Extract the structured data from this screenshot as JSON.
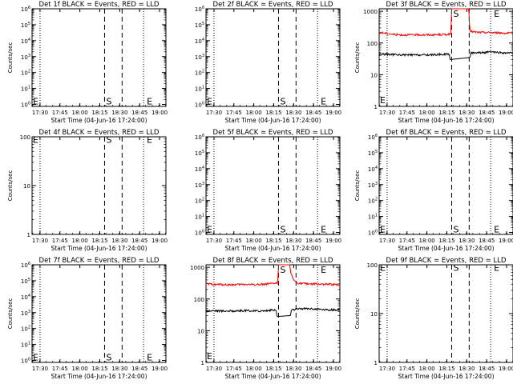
{
  "chart_data": [
    {
      "type": "line",
      "title": "Det 1f BLACK = Events, RED = LLD",
      "xlabel": "Start Time (04-Jun-16 17:24:00)",
      "ylabel": "Counts/sec",
      "xlim": [
        17.4,
        19.08
      ],
      "x_tick_labels": [
        "17:30",
        "17:45",
        "18:00",
        "18:15",
        "18:30",
        "18:45",
        "19:00"
      ],
      "x_ticks": [
        17.5,
        17.75,
        18.0,
        18.25,
        18.5,
        18.75,
        19.0
      ],
      "y_scale": "log",
      "ylim": [
        0.75,
        1000000
      ],
      "y_tick_labels": [
        "10^0",
        "10^1",
        "10^2",
        "10^3",
        "10^4",
        "10^5",
        "10^6"
      ],
      "y_ticks": [
        1,
        10,
        100,
        1000,
        10000,
        100000,
        1000000
      ],
      "dotted_lines_x": [
        17.5,
        18.8
      ],
      "dashed_lines_x": [
        18.31,
        18.53
      ],
      "markers": [
        {
          "text": "E",
          "x": 17.41,
          "y": 1.6
        },
        {
          "text": "S",
          "x": 18.33,
          "y": 1.6
        },
        {
          "text": "E",
          "x": 18.84,
          "y": 1.6
        }
      ],
      "series": []
    },
    {
      "type": "line",
      "title": "Det 2f BLACK = Events, RED = LLD",
      "xlabel": "Start Time (04-Jun-16 17:24:00)",
      "ylabel": "",
      "xlim": [
        17.4,
        19.08
      ],
      "x_tick_labels": [
        "17:30",
        "17:45",
        "18:00",
        "18:15",
        "18:30",
        "18:45",
        "19:00"
      ],
      "x_ticks": [
        17.5,
        17.75,
        18.0,
        18.25,
        18.5,
        18.75,
        19.0
      ],
      "y_scale": "log",
      "ylim": [
        0.75,
        1000000
      ],
      "y_tick_labels": [
        "10^0",
        "10^1",
        "10^2",
        "10^3",
        "10^4",
        "10^5",
        "10^6"
      ],
      "y_ticks": [
        1,
        10,
        100,
        1000,
        10000,
        100000,
        1000000
      ],
      "dotted_lines_x": [
        17.5,
        18.8
      ],
      "dashed_lines_x": [
        18.31,
        18.53
      ],
      "markers": [
        {
          "text": "E",
          "x": 17.41,
          "y": 1.6
        },
        {
          "text": "S",
          "x": 18.33,
          "y": 1.6
        },
        {
          "text": "E",
          "x": 18.84,
          "y": 1.6
        }
      ],
      "series": []
    },
    {
      "type": "line",
      "title": "Det 3f BLACK = Events, RED = LLD",
      "xlabel": "Start Time (04-Jun-16 17:24:00)",
      "ylabel": "Counts/sec",
      "xlim": [
        17.4,
        19.08
      ],
      "x_tick_labels": [
        "17:30",
        "17:45",
        "18:00",
        "18:15",
        "18:30",
        "18:45",
        "19:00"
      ],
      "x_ticks": [
        17.5,
        17.75,
        18.0,
        18.25,
        18.5,
        18.75,
        19.0
      ],
      "y_scale": "log",
      "ylim": [
        1,
        1200
      ],
      "y_tick_labels": [
        "1",
        "10",
        "100",
        "1000"
      ],
      "y_ticks": [
        1,
        10,
        100,
        1000
      ],
      "dotted_lines_x": [
        17.5,
        18.8
      ],
      "dashed_lines_x": [
        18.31,
        18.53
      ],
      "markers": [
        {
          "text": "E",
          "x": 17.41,
          "y": 1.6
        },
        {
          "text": "S",
          "x": 18.33,
          "y": 850
        },
        {
          "text": "E",
          "x": 18.84,
          "y": 850
        }
      ],
      "series": [
        {
          "color": "#ff0000",
          "gap": [
            18.31,
            18.53
          ],
          "x": [
            17.4,
            17.5,
            17.6,
            17.7,
            17.8,
            17.9,
            18.0,
            18.1,
            18.2,
            18.3,
            18.305,
            18.31,
            18.52,
            18.53,
            18.535,
            18.54,
            18.6,
            18.7,
            18.8,
            18.9,
            19.0
          ],
          "y": [
            220,
            200,
            185,
            180,
            180,
            182,
            180,
            182,
            185,
            190,
            600,
            1500,
            1500,
            800,
            300,
            240,
            220,
            215,
            215,
            210,
            205
          ]
        },
        {
          "color": "#000000",
          "gap": [
            18.29,
            18.54
          ],
          "x": [
            17.4,
            17.5,
            17.6,
            17.7,
            17.8,
            17.9,
            18.0,
            18.1,
            18.2,
            18.28,
            18.29,
            18.54,
            18.55,
            18.6,
            18.7,
            18.8,
            18.9,
            19.0
          ],
          "y": [
            45,
            44,
            43,
            42,
            42,
            42,
            42,
            43,
            44,
            45,
            30,
            35,
            48,
            50,
            50,
            52,
            50,
            48
          ]
        }
      ]
    },
    {
      "type": "line",
      "title": "Det 4f BLACK = Events, RED = LLD",
      "xlabel": "Start Time (04-Jun-16 17:24:00)",
      "ylabel": "Counts/sec",
      "xlim": [
        17.4,
        19.08
      ],
      "x_tick_labels": [
        "17:30",
        "17:45",
        "18:00",
        "18:15",
        "18:30",
        "18:45",
        "19:00"
      ],
      "x_ticks": [
        17.5,
        17.75,
        18.0,
        18.25,
        18.5,
        18.75,
        19.0
      ],
      "y_scale": "log",
      "ylim": [
        1,
        100
      ],
      "y_tick_labels": [
        "1",
        "10",
        "100"
      ],
      "y_ticks": [
        1,
        10,
        100
      ],
      "dotted_lines_x": [
        17.5,
        18.8
      ],
      "dashed_lines_x": [
        18.31,
        18.53
      ],
      "markers": [
        {
          "text": "E",
          "x": 17.41,
          "y": 88
        },
        {
          "text": "S",
          "x": 18.33,
          "y": 88
        },
        {
          "text": "E",
          "x": 18.84,
          "y": 88
        }
      ],
      "series": []
    },
    {
      "type": "line",
      "title": "Det 5f BLACK = Events, RED = LLD",
      "xlabel": "Start Time (04-Jun-16 17:24:00)",
      "ylabel": "",
      "xlim": [
        17.4,
        19.08
      ],
      "x_tick_labels": [
        "17:30",
        "17:45",
        "18:00",
        "18:15",
        "18:30",
        "18:45",
        "19:00"
      ],
      "x_ticks": [
        17.5,
        17.75,
        18.0,
        18.25,
        18.5,
        18.75,
        19.0
      ],
      "y_scale": "log",
      "ylim": [
        0.75,
        1000000
      ],
      "y_tick_labels": [
        "10^0",
        "10^1",
        "10^2",
        "10^3",
        "10^4",
        "10^5",
        "10^6"
      ],
      "y_ticks": [
        1,
        10,
        100,
        1000,
        10000,
        100000,
        1000000
      ],
      "dotted_lines_x": [
        17.5,
        18.8
      ],
      "dashed_lines_x": [
        18.31,
        18.53
      ],
      "markers": [
        {
          "text": "E",
          "x": 17.41,
          "y": 1.6
        },
        {
          "text": "S",
          "x": 18.33,
          "y": 1.6
        },
        {
          "text": "E",
          "x": 18.84,
          "y": 1.6
        }
      ],
      "series": []
    },
    {
      "type": "line",
      "title": "Det 6f BLACK = Events, RED = LLD",
      "xlabel": "Start Time (04-Jun-16 17:24:00)",
      "ylabel": "Counts/sec",
      "xlim": [
        17.4,
        19.08
      ],
      "x_tick_labels": [
        "17:30",
        "17:45",
        "18:00",
        "18:15",
        "18:30",
        "18:45",
        "19:00"
      ],
      "x_ticks": [
        17.5,
        17.75,
        18.0,
        18.25,
        18.5,
        18.75,
        19.0
      ],
      "y_scale": "log",
      "ylim": [
        0.75,
        1000000
      ],
      "y_tick_labels": [
        "10^0",
        "10^1",
        "10^2",
        "10^3",
        "10^4",
        "10^5",
        "10^6"
      ],
      "y_ticks": [
        1,
        10,
        100,
        1000,
        10000,
        100000,
        1000000
      ],
      "dotted_lines_x": [
        17.5,
        18.8
      ],
      "dashed_lines_x": [
        18.31,
        18.53
      ],
      "markers": [
        {
          "text": "E",
          "x": 17.41,
          "y": 1.6
        },
        {
          "text": "S",
          "x": 18.33,
          "y": 1.6
        },
        {
          "text": "E",
          "x": 18.84,
          "y": 1.6
        }
      ],
      "series": []
    },
    {
      "type": "line",
      "title": "Det 7f BLACK = Events, RED = LLD",
      "xlabel": "Start Time (04-Jun-16 17:24:00)",
      "ylabel": "Counts/sec",
      "xlim": [
        17.4,
        19.08
      ],
      "x_tick_labels": [
        "17:30",
        "17:45",
        "18:00",
        "18:15",
        "18:30",
        "18:45",
        "19:00"
      ],
      "x_ticks": [
        17.5,
        17.75,
        18.0,
        18.25,
        18.5,
        18.75,
        19.0
      ],
      "y_scale": "log",
      "ylim": [
        0.75,
        1000000
      ],
      "y_tick_labels": [
        "10^0",
        "10^1",
        "10^2",
        "10^3",
        "10^4",
        "10^5",
        "10^6"
      ],
      "y_ticks": [
        1,
        10,
        100,
        1000,
        10000,
        100000,
        1000000
      ],
      "dotted_lines_x": [
        17.5,
        18.8
      ],
      "dashed_lines_x": [
        18.31,
        18.53
      ],
      "markers": [
        {
          "text": "E",
          "x": 17.41,
          "y": 1.6
        },
        {
          "text": "S",
          "x": 18.33,
          "y": 1.6
        },
        {
          "text": "E",
          "x": 18.84,
          "y": 1.6
        }
      ],
      "series": []
    },
    {
      "type": "line",
      "title": "Det 8f BLACK = Events, RED = LLD",
      "xlabel": "Start Time (04-Jun-16 17:24:00)",
      "ylabel": "",
      "xlim": [
        17.4,
        19.08
      ],
      "x_tick_labels": [
        "17:30",
        "17:45",
        "18:00",
        "18:15",
        "18:30",
        "18:45",
        "19:00"
      ],
      "x_ticks": [
        17.5,
        17.75,
        18.0,
        18.25,
        18.5,
        18.75,
        19.0
      ],
      "y_scale": "log",
      "ylim": [
        1,
        1200
      ],
      "y_tick_labels": [
        "1",
        "10",
        "100",
        "1000"
      ],
      "y_ticks": [
        1,
        10,
        100,
        1000
      ],
      "dotted_lines_x": [
        17.5,
        18.8
      ],
      "dashed_lines_x": [
        18.31,
        18.53
      ],
      "markers": [
        {
          "text": "E",
          "x": 17.41,
          "y": 1.6
        },
        {
          "text": "S",
          "x": 18.33,
          "y": 850
        },
        {
          "text": "E",
          "x": 18.84,
          "y": 850
        }
      ],
      "series": [
        {
          "color": "#ff0000",
          "gap": [
            18.31,
            18.54
          ],
          "x": [
            17.4,
            17.5,
            17.6,
            17.7,
            17.8,
            17.9,
            18.0,
            18.1,
            18.2,
            18.3,
            18.305,
            18.31,
            18.45,
            18.46,
            18.5,
            18.54,
            18.55,
            18.6,
            18.7,
            18.8,
            18.9,
            19.0
          ],
          "y": [
            300,
            290,
            285,
            280,
            285,
            290,
            285,
            290,
            300,
            320,
            700,
            1500,
            1500,
            700,
            400,
            330,
            320,
            310,
            300,
            295,
            290,
            285
          ]
        },
        {
          "color": "#000000",
          "gap": [
            18.29,
            18.46
          ],
          "x": [
            17.4,
            17.5,
            17.6,
            17.7,
            17.8,
            17.9,
            18.0,
            18.1,
            18.2,
            18.28,
            18.29,
            18.46,
            18.47,
            18.55,
            18.6,
            18.7,
            18.8,
            18.9,
            19.0
          ],
          "y": [
            42,
            43,
            42,
            42,
            42,
            43,
            42,
            42,
            44,
            45,
            28,
            30,
            45,
            48,
            50,
            50,
            48,
            46,
            45
          ]
        }
      ]
    },
    {
      "type": "line",
      "title": "Det 9f BLACK = Events, RED = LLD",
      "xlabel": "Start Time (04-Jun-16 17:24:00)",
      "ylabel": "Counts/sec",
      "xlim": [
        17.4,
        19.08
      ],
      "x_tick_labels": [
        "17:30",
        "17:45",
        "18:00",
        "18:15",
        "18:30",
        "18:45",
        "19:00"
      ],
      "x_ticks": [
        17.5,
        17.75,
        18.0,
        18.25,
        18.5,
        18.75,
        19.0
      ],
      "y_scale": "log",
      "ylim": [
        1,
        100
      ],
      "y_tick_labels": [
        "1",
        "10",
        "100"
      ],
      "y_ticks": [
        1,
        10,
        100
      ],
      "dotted_lines_x": [
        17.5,
        18.8
      ],
      "dashed_lines_x": [
        18.31,
        18.53
      ],
      "markers": [
        {
          "text": "E",
          "x": 17.41,
          "y": 88
        },
        {
          "text": "S",
          "x": 18.33,
          "y": 88
        },
        {
          "text": "E",
          "x": 18.84,
          "y": 88
        }
      ],
      "series": []
    }
  ]
}
